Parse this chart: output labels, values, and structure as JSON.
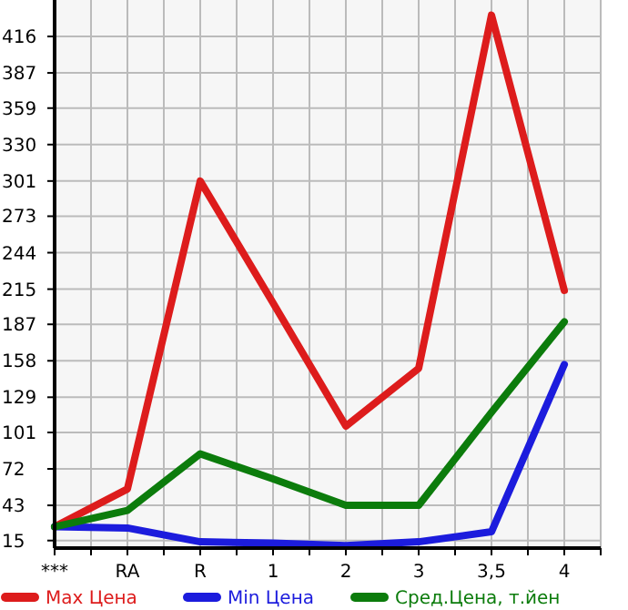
{
  "chart_data": {
    "type": "line",
    "categories": [
      "***",
      "RA",
      "R",
      "1",
      "2",
      "3",
      "3,5",
      "4"
    ],
    "series": [
      {
        "name": "Max Цена",
        "color": "#dd1c1c",
        "values": [
          26,
          56,
          301,
          204,
          106,
          152,
          433,
          214
        ]
      },
      {
        "name": "Min Цена",
        "color": "#1c1cdd",
        "values": [
          26,
          25,
          14,
          13,
          11,
          14,
          22,
          155
        ]
      },
      {
        "name": "Сред.Цена, т.йен",
        "color": "#0c7c0c",
        "values": [
          26,
          39,
          84,
          64,
          43,
          43,
          117,
          189
        ]
      }
    ],
    "ylim": [
      9,
      445
    ],
    "yticks": [
      15,
      43,
      72,
      101,
      129,
      158,
      187,
      215,
      244,
      273,
      301,
      330,
      359,
      387,
      416
    ],
    "grid": true,
    "legend": "bottom",
    "marker": "none",
    "line_style": "solid"
  }
}
